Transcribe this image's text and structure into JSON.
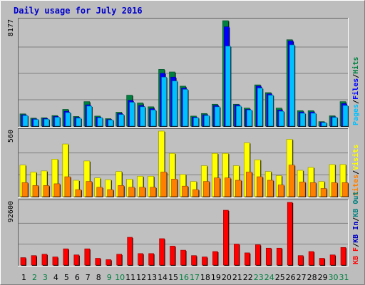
{
  "chart_data": {
    "type": "bar",
    "title": "Daily usage for July 2016",
    "categories": [
      "1",
      "2",
      "3",
      "4",
      "5",
      "6",
      "7",
      "8",
      "9",
      "10",
      "11",
      "12",
      "13",
      "14",
      "15",
      "16",
      "17",
      "18",
      "19",
      "20",
      "21",
      "22",
      "23",
      "24",
      "25",
      "26",
      "27",
      "28",
      "29",
      "30",
      "31"
    ],
    "weekend_days": [
      "2",
      "3",
      "9",
      "10",
      "16",
      "17",
      "23",
      "24",
      "30",
      "31"
    ],
    "colors": {
      "hits": "#008040",
      "files": "#0000ff",
      "pages": "#00c0ff",
      "visits": "#ffff00",
      "sites": "#ff8000",
      "kbout": "#008080",
      "kbin": "#0000c0",
      "kbf": "#ff0000",
      "weekday_label": "#000000",
      "weekend_label": "#008040"
    },
    "panels": [
      {
        "id": "hits-files-pages",
        "max_label": "8177",
        "ylim": [
          0,
          8177
        ],
        "legend": [
          {
            "text": "Pages",
            "color": "#00c0ff"
          },
          {
            "text": "Files",
            "color": "#0000ff"
          },
          {
            "text": "Hits",
            "color": "#008040"
          }
        ],
        "separators": [
          "/",
          "/"
        ],
        "series": [
          {
            "name": "Hits",
            "values": [
              950,
              620,
              650,
              820,
              1300,
              750,
              1900,
              780,
              580,
              1080,
              2400,
              1800,
              1500,
              4400,
              4200,
              3100,
              780,
              980,
              1700,
              8177,
              1700,
              1400,
              3200,
              2600,
              1400,
              6700,
              1200,
              1200,
              350,
              800,
              1900
            ]
          },
          {
            "name": "Files",
            "values": [
              880,
              560,
              590,
              750,
              1150,
              680,
              1650,
              700,
              520,
              980,
              2000,
              1600,
              1350,
              4100,
              3800,
              2950,
              700,
              880,
              1600,
              7700,
              1650,
              1300,
              3100,
              2500,
              1250,
              6600,
              1100,
              1100,
              300,
              720,
              1750
            ]
          },
          {
            "name": "Pages",
            "values": [
              820,
              520,
              540,
              690,
              1050,
              620,
              1550,
              650,
              480,
              900,
              1850,
              1500,
              1250,
              3800,
              3500,
              2850,
              650,
              820,
              1500,
              6200,
              1550,
              1250,
              2950,
              2400,
              1150,
              6300,
              1000,
              1000,
              270,
              680,
              1600
            ]
          }
        ]
      },
      {
        "id": "visits-sites",
        "max_label": "560",
        "ylim": [
          0,
          560
        ],
        "legend": [
          {
            "text": "Sites",
            "color": "#ff8000"
          },
          {
            "text": "Visits",
            "color": "#ffff00"
          }
        ],
        "separators": [
          "/"
        ],
        "series": [
          {
            "name": "Visits",
            "values": [
              270,
              210,
              220,
              320,
              450,
              140,
              305,
              160,
              145,
              215,
              150,
              175,
              175,
              560,
              370,
              190,
              130,
              265,
              370,
              370,
              265,
              460,
              315,
              215,
              180,
              490,
              225,
              250,
              130,
              275,
              275
            ]
          },
          {
            "name": "Sites",
            "values": [
              120,
              95,
              95,
              110,
              170,
              60,
              130,
              80,
              60,
              95,
              80,
              80,
              80,
              210,
              150,
              90,
              60,
              130,
              160,
              160,
              140,
              210,
              170,
              140,
              100,
              270,
              125,
              120,
              70,
              120,
              120
            ]
          }
        ]
      },
      {
        "id": "kb",
        "max_label": "92600",
        "ylim": [
          0,
          92600
        ],
        "legend": [
          {
            "text": "KB F",
            "color": "#ff0000"
          },
          {
            "text": "KB In",
            "color": "#0000c0"
          },
          {
            "text": "KB Out",
            "color": "#008080"
          }
        ],
        "separators": [
          "/",
          "/"
        ],
        "series": [
          {
            "name": "KB F",
            "values": [
              11000,
              14000,
              16000,
              12000,
              24000,
              15000,
              24000,
              10000,
              8000,
              16000,
              41000,
              17000,
              17000,
              39000,
              28000,
              22000,
              14000,
              12000,
              20000,
              81000,
              31000,
              18000,
              30000,
              25000,
              25000,
              92600,
              14000,
              20000,
              10000,
              15000,
              26000
            ]
          }
        ]
      }
    ]
  }
}
